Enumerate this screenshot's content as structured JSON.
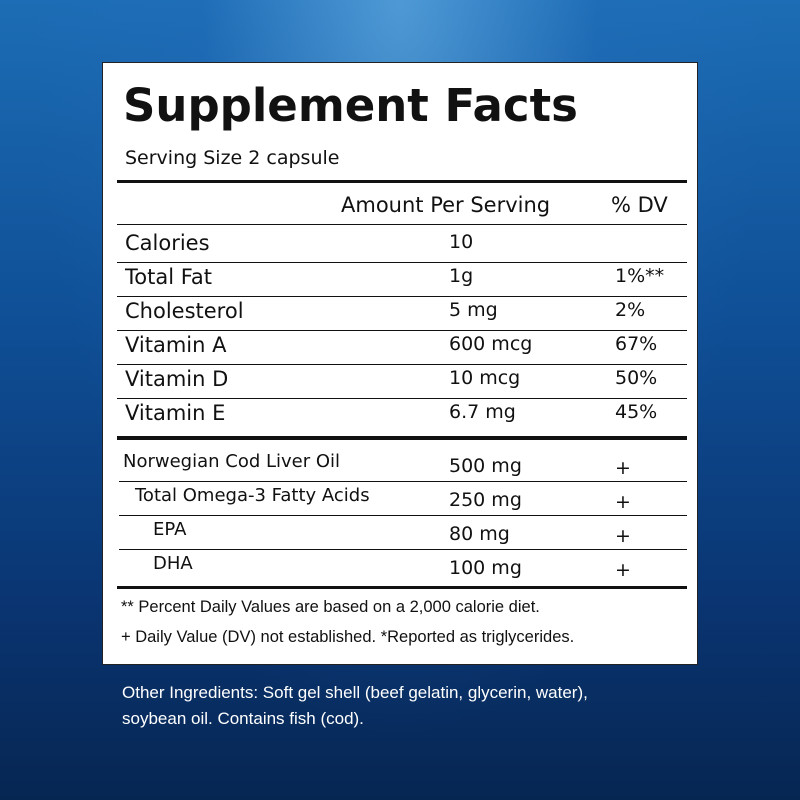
{
  "label": {
    "title": "Supplement Facts",
    "serving_size": "Serving Size 2 capsule",
    "header": {
      "amount": "Amount Per Serving",
      "dv": "% DV"
    },
    "nutrients": [
      {
        "name": "Calories",
        "amount": "10"
      },
      {
        "name": "Total Fat",
        "amount": "1g",
        "dv": "1%**"
      },
      {
        "name": "Cholesterol",
        "amount": "5 mg",
        "dv": "2%"
      },
      {
        "name": "Vitamin A",
        "amount": "600 mcg",
        "dv": "67%"
      },
      {
        "name": "Vitamin D",
        "amount": "10 mcg",
        "dv": "50%"
      },
      {
        "name": "Vitamin E",
        "amount": "6.7 mg",
        "dv": "45%"
      }
    ],
    "ingredients": [
      {
        "name": "Norwegian Cod Liver Oil",
        "amount": "500 mg",
        "dv": "+"
      },
      {
        "name": "Total Omega-3 Fatty Acids",
        "amount": "250 mg",
        "dv": "+"
      },
      {
        "name": "EPA",
        "amount": "80 mg",
        "dv": "+"
      },
      {
        "name": "DHA",
        "amount": "100 mg",
        "dv": "+"
      }
    ],
    "footnotes": [
      "** Percent Daily Values are based on a 2,000 calorie diet.",
      "+ Daily Value (DV) not established. *Reported as triglycerides."
    ]
  },
  "other_ingredients": [
    "Other Ingredients: Soft gel shell (beef gelatin, glycerin, water),",
    "soybean oil. Contains fish (cod)."
  ]
}
